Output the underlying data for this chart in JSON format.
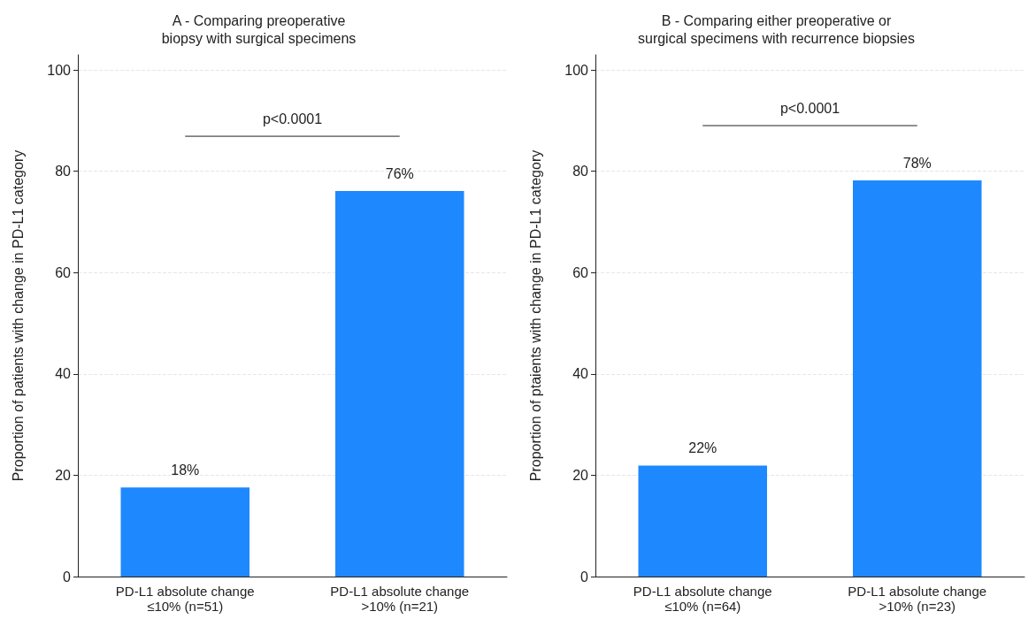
{
  "chart_data": [
    {
      "type": "bar",
      "title": "A - Comparing preoperative\nbiopsy with surgical specimens",
      "ylabel": "Proportion of patients with change in PD-L1 category",
      "categories": [
        "PD-L1 absolute change\n≤10% (n=51)",
        "PD-L1 absolute change\n>10% (n=21)"
      ],
      "values": [
        17.6,
        76.1
      ],
      "value_labels": [
        "18%",
        "76%"
      ],
      "color": "#1e88ff",
      "ylim": [
        0,
        103
      ],
      "yticks": [
        0,
        20,
        40,
        60,
        80,
        100
      ],
      "grid": "y",
      "annotations": [
        "p<0.0001"
      ]
    },
    {
      "type": "bar",
      "title": "B - Comparing either preoperative or\nsurgical specimens with recurrence biopsies",
      "ylabel": "Proportion of ptaients with change in PD-L1 category",
      "categories": [
        "PD-L1 absolute change\n≤10% (n=64)",
        "PD-L1 absolute change\n>10% (n=23)"
      ],
      "values": [
        21.9,
        78.2
      ],
      "value_labels": [
        "22%",
        "78%"
      ],
      "color": "#1e88ff",
      "ylim": [
        0,
        103
      ],
      "yticks": [
        0,
        20,
        40,
        60,
        80,
        100
      ],
      "grid": "y",
      "annotations": [
        "p<0.0001"
      ]
    }
  ]
}
